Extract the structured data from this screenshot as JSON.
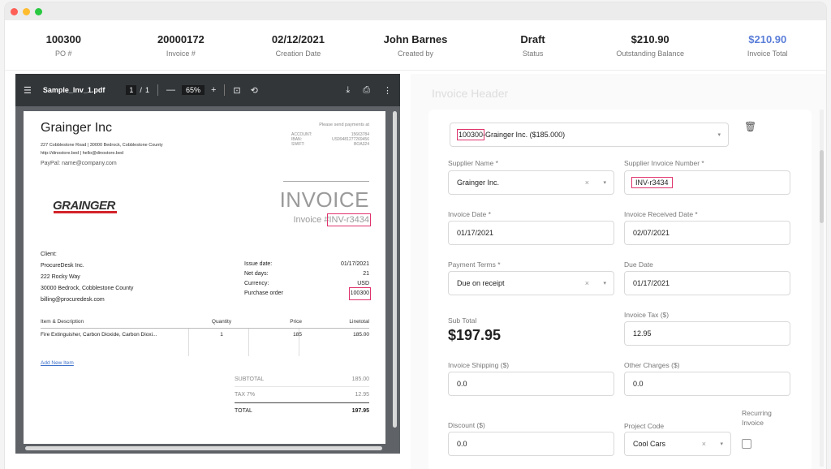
{
  "summary": [
    {
      "value": "100300",
      "label": "PO #"
    },
    {
      "value": "20000172",
      "label": "Invoice #"
    },
    {
      "value": "02/12/2021",
      "label": "Creation Date"
    },
    {
      "value": "John Barnes",
      "label": "Created by"
    },
    {
      "value": "Draft",
      "label": "Status"
    },
    {
      "value": "$210.90",
      "label": "Outstanding Balance"
    },
    {
      "value": "$210.90",
      "label": "Invoice Total",
      "color": "#5b7ed8"
    }
  ],
  "pdf": {
    "menu_icon": "hamburger-menu-icon",
    "file_name": "Sample_Inv_1.pdf",
    "page_current": "1",
    "page_sep": "/",
    "page_total": "1",
    "zoom": "65%",
    "page": {
      "company": "Grainger Inc",
      "address_line1": "227 Cobblestone Road | 30000 Bedrock, Cobblestone County",
      "address_line2": "http://dinostore.bed | hello@dinostore.bed",
      "paypal": "PayPal:  name@company.com",
      "pay_heading": "Please send payments at",
      "pay_rows": [
        {
          "label": "ACCOUNT:",
          "value": "15663784"
        },
        {
          "label": "IBAN:",
          "value": "US99481277269456"
        },
        {
          "label": "SWIFT:",
          "value": "BOA324"
        }
      ],
      "logo_text": "GRAINGER",
      "title": "INVOICE",
      "invoice_prefix": "Invoice #",
      "invoice_number": "INV-r3434",
      "client_label": "Client:",
      "client_lines": [
        "ProcureDesk Inc.",
        "222 Rocky Way",
        "30000 Bedrock, Cobblestone County",
        "billing@procuredesk.com"
      ],
      "meta": [
        {
          "label": "Issue date:",
          "value": "01/17/2021"
        },
        {
          "label": "Net days:",
          "value": "21"
        },
        {
          "label": "Currency:",
          "value": "USD"
        },
        {
          "label": "Purchase order",
          "value": "100300"
        }
      ],
      "items_header": {
        "desc": "Item & Description",
        "qty": "Quantity",
        "price": "Price",
        "line": "Linetotal"
      },
      "item": {
        "desc": "Fire Extinguisher, Carbon Dioxide, Carbon Dioxi...",
        "qty": "1",
        "price": "185",
        "line": "185.00"
      },
      "add_item": "Add New Item",
      "totals": [
        {
          "label": "SUBTOTAL",
          "value": "185.00"
        },
        {
          "label": "TAX 7%",
          "value": "12.95"
        },
        {
          "label": "TOTAL",
          "value": "197.95"
        }
      ]
    }
  },
  "form": {
    "section_title": "Invoice Header",
    "po_select": {
      "po": "100300",
      "supplier": "-Grainger Inc. ($185.000)"
    },
    "supplier_name": {
      "label": "Supplier Name *",
      "value": "Grainger Inc."
    },
    "supplier_invoice": {
      "label": "Supplier Invoice Number *",
      "value": "INV-r3434"
    },
    "invoice_date": {
      "label": "Invoice Date *",
      "value": "01/17/2021"
    },
    "received_date": {
      "label": "Invoice Received Date *",
      "value": "02/07/2021"
    },
    "payment_terms": {
      "label": "Payment Terms *",
      "value": "Due on receipt"
    },
    "due_date": {
      "label": "Due Date",
      "value": "01/17/2021"
    },
    "sub_total": {
      "label": "Sub Total",
      "value": "$197.95"
    },
    "invoice_tax": {
      "label": "Invoice Tax ($)",
      "value": "12.95"
    },
    "shipping": {
      "label": "Invoice Shipping ($)",
      "value": "0.0"
    },
    "other_charges": {
      "label": "Other Charges ($)",
      "value": "0.0"
    },
    "discount": {
      "label": "Discount ($)",
      "value": "0.0"
    },
    "project_code": {
      "label": "Project Code",
      "value": "Cool Cars"
    },
    "recurring": {
      "label_line1": "Recurring",
      "label_line2": "Invoice",
      "checked": false
    }
  },
  "icons": {
    "clear": "×",
    "caret": "▾",
    "trash": "trash-icon"
  }
}
